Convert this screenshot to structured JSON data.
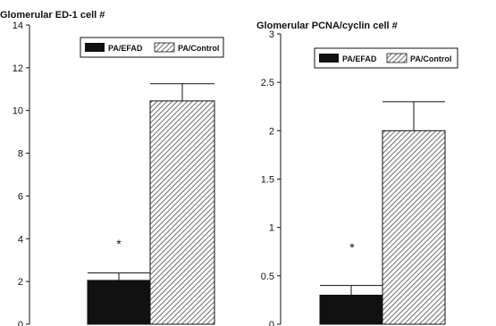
{
  "chart_data": [
    {
      "type": "bar",
      "title": "Glomerular ED-1 cell #",
      "xlabel": "",
      "ylabel": "",
      "ylim": [
        0,
        14
      ],
      "yticks": [
        0,
        2,
        4,
        6,
        8,
        10,
        12,
        14
      ],
      "ytick_labels": [
        "0",
        "2",
        "4",
        "6",
        "8",
        "10",
        "12",
        "14"
      ],
      "legend": "top-right",
      "grid": false,
      "series": [
        {
          "name": "PA/EFAD",
          "value": 2.05,
          "error": 0.35,
          "fill": "solid",
          "color": "#111111"
        },
        {
          "name": "PA/Control",
          "value": 10.45,
          "error": 0.8,
          "fill": "hatch",
          "color": "#555555"
        }
      ],
      "annotations": [
        {
          "text": "*",
          "series": "PA/EFAD"
        }
      ]
    },
    {
      "type": "bar",
      "title": "Glomerular PCNA/cyclin cell #",
      "xlabel": "",
      "ylabel": "",
      "ylim": [
        0,
        3
      ],
      "yticks": [
        0,
        0.5,
        1,
        1.5,
        2,
        2.5,
        3
      ],
      "ytick_labels": [
        "0",
        "0.5",
        "1",
        "1.5",
        "2",
        "2.5",
        "3"
      ],
      "legend": "top-right",
      "grid": false,
      "series": [
        {
          "name": "PA/EFAD",
          "value": 0.3,
          "error": 0.1,
          "fill": "solid",
          "color": "#111111"
        },
        {
          "name": "PA/Control",
          "value": 2.0,
          "error": 0.3,
          "fill": "hatch",
          "color": "#555555"
        }
      ],
      "annotations": [
        {
          "text": "*",
          "series": "PA/EFAD"
        }
      ]
    }
  ]
}
